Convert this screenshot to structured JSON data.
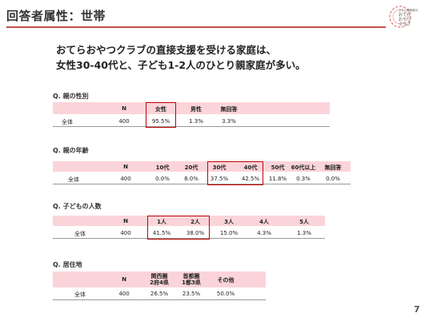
{
  "header": {
    "title": "回答者属性：世帯"
  },
  "logo": {
    "text_lines": [
      "ひとり親家庭の",
      "おてら",
      "おやつ",
      "クラブ"
    ]
  },
  "lead": {
    "line1": "おてらおやつクラブの直接支援を受ける家庭は、",
    "line2": "女性30-40代と、子ども1-2人のひとり親家庭が多い。"
  },
  "q1": {
    "label": "Q.  親の性別",
    "headers": [
      "N",
      "女性",
      "男性",
      "無回答"
    ],
    "row_label": "全体",
    "values": [
      "400",
      "95.5%",
      "1.3%",
      "3.3%"
    ]
  },
  "q2": {
    "label": "Q.  親の年齢",
    "headers": [
      "N",
      "10代",
      "20代",
      "30代",
      "40代",
      "50代",
      "60代以上",
      "無回答"
    ],
    "row_label": "全体",
    "values": [
      "400",
      "0.0%",
      "8.0%",
      "37.5%",
      "42.5%",
      "11.8%",
      "0.3%",
      "0.0%"
    ]
  },
  "q3": {
    "label": "Q.  子どもの人数",
    "headers": [
      "N",
      "1人",
      "2人",
      "3人",
      "4人",
      "5人"
    ],
    "row_label": "全体",
    "values": [
      "400",
      "41.5%",
      "38.0%",
      "15.0%",
      "4.3%",
      "1.3%"
    ]
  },
  "q4": {
    "label": "Q.  居住地",
    "headers": [
      "N",
      "関西圏\n2府4県",
      "首都圏\n1都3県",
      "その他"
    ],
    "row_label": "全体",
    "values": [
      "400",
      "26.5%",
      "23.5%",
      "50.0%"
    ]
  },
  "page": {
    "number": "7"
  }
}
